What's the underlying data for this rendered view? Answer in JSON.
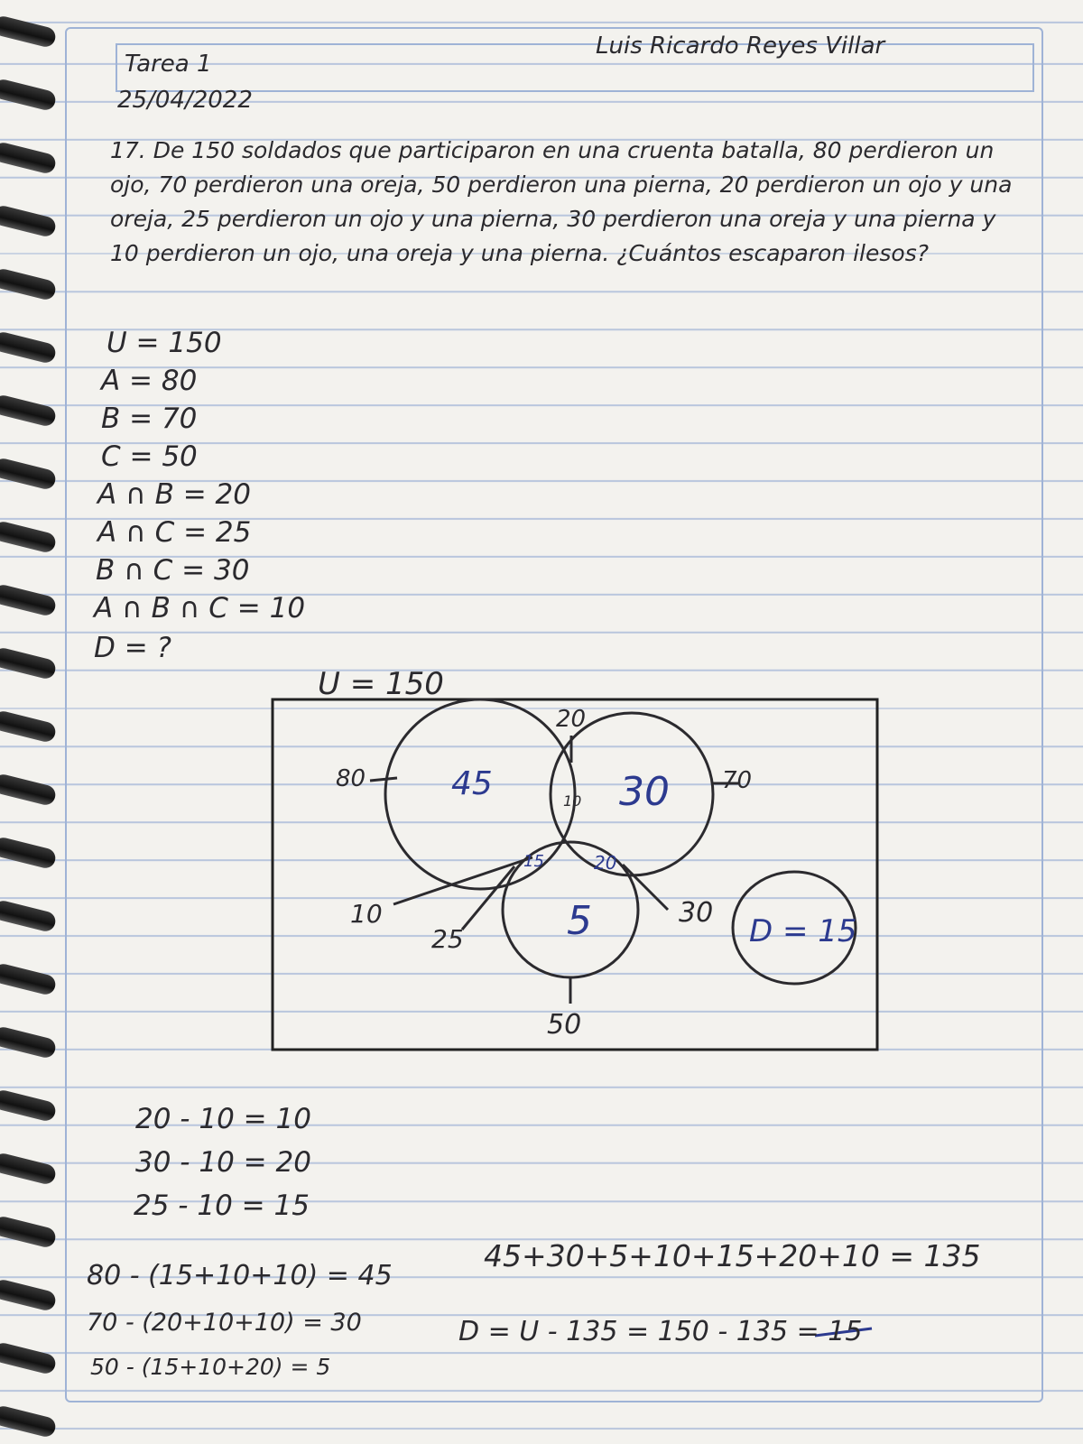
{
  "header": {
    "assignment": "Tarea 1",
    "date": "25/04/2022",
    "author": "Luis Ricardo Reyes Villar"
  },
  "problem": {
    "text": "17. De 150 soldados que participaron en una cruenta batalla, 80 perdieron un ojo, 70 perdieron una oreja, 50 perdieron una pierna, 20 perdieron un ojo y una oreja, 25 perdieron un ojo y una pierna, 30 perdieron una oreja y una pierna y 10 perdieron un ojo, una oreja y una pierna. ¿Cuántos escaparon ilesos?"
  },
  "given": [
    "U = 150",
    "A = 80",
    "B = 70",
    "C = 50",
    "A ∩ B = 20",
    "A ∩ C = 25",
    "B ∩ C = 30",
    "A ∩ B ∩ C = 10",
    "D = ?"
  ],
  "venn": {
    "universe_label": "U = 150",
    "a_total": "80",
    "b_total": "70",
    "c_total": "50",
    "ab_total": "20",
    "ac_total": "25",
    "bc_total": "30",
    "abc_total": "10",
    "only_a": "45",
    "only_b": "30",
    "only_c": "5",
    "ab_only": "10",
    "ac_only": "15",
    "bc_only": "20",
    "d": "D = 15"
  },
  "work": {
    "pairs": [
      "20 - 10 = 10",
      "30 - 10 = 20",
      "25 - 10 = 15"
    ],
    "singles": [
      "80 - (15+10+10) = 45",
      "70 - (20+10+10) = 30",
      "50 - (15+10+20) = 5"
    ],
    "sum": "45+30+5+10+15+20+10 = 135",
    "result": "D = U - 135 = 150 - 135 = 15"
  },
  "colors": {
    "ink": "#2b2a2e",
    "blue_ink": "#2c3a8f",
    "paper": "#f3f2ee",
    "rule_lines": "#b9c6dd"
  }
}
